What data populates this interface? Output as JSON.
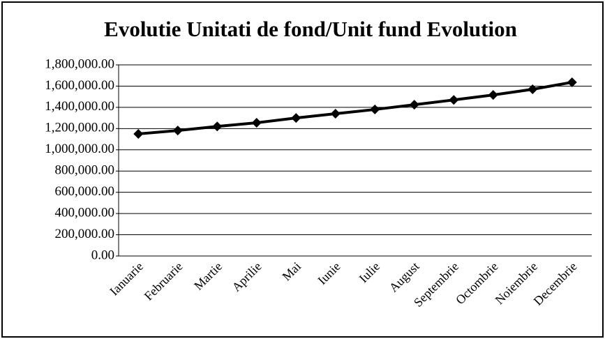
{
  "chart_data": {
    "type": "line",
    "title": "Evolutie Unitati de fond/Unit fund Evolution",
    "categories": [
      "Ianuarie",
      "Februarie",
      "Martie",
      "Aprilie",
      "Mai",
      "Iunie",
      "Iulie",
      "August",
      "Septembrie",
      "Octombrie",
      "Noiembrie",
      "Decembrie"
    ],
    "series": [
      {
        "color": "#000000",
        "values": [
          1150000,
          1182000,
          1220000,
          1255000,
          1300000,
          1340000,
          1380000,
          1425000,
          1470000,
          1517000,
          1570000,
          1636000
        ]
      }
    ],
    "ylim": [
      0,
      1800000
    ],
    "yticks": [
      {
        "value": 0,
        "label": "0.00"
      },
      {
        "value": 200000,
        "label": "200,000.00"
      },
      {
        "value": 400000,
        "label": "400,000.00"
      },
      {
        "value": 600000,
        "label": "600,000.00"
      },
      {
        "value": 800000,
        "label": "800,000.00"
      },
      {
        "value": 1000000,
        "label": "1,000,000.00"
      },
      {
        "value": 1200000,
        "label": "1,200,000.00"
      },
      {
        "value": 1400000,
        "label": "1,400,000.00"
      },
      {
        "value": 1600000,
        "label": "1,600,000.00"
      },
      {
        "value": 1800000,
        "label": "1,800,000.00"
      }
    ],
    "grid": true
  }
}
